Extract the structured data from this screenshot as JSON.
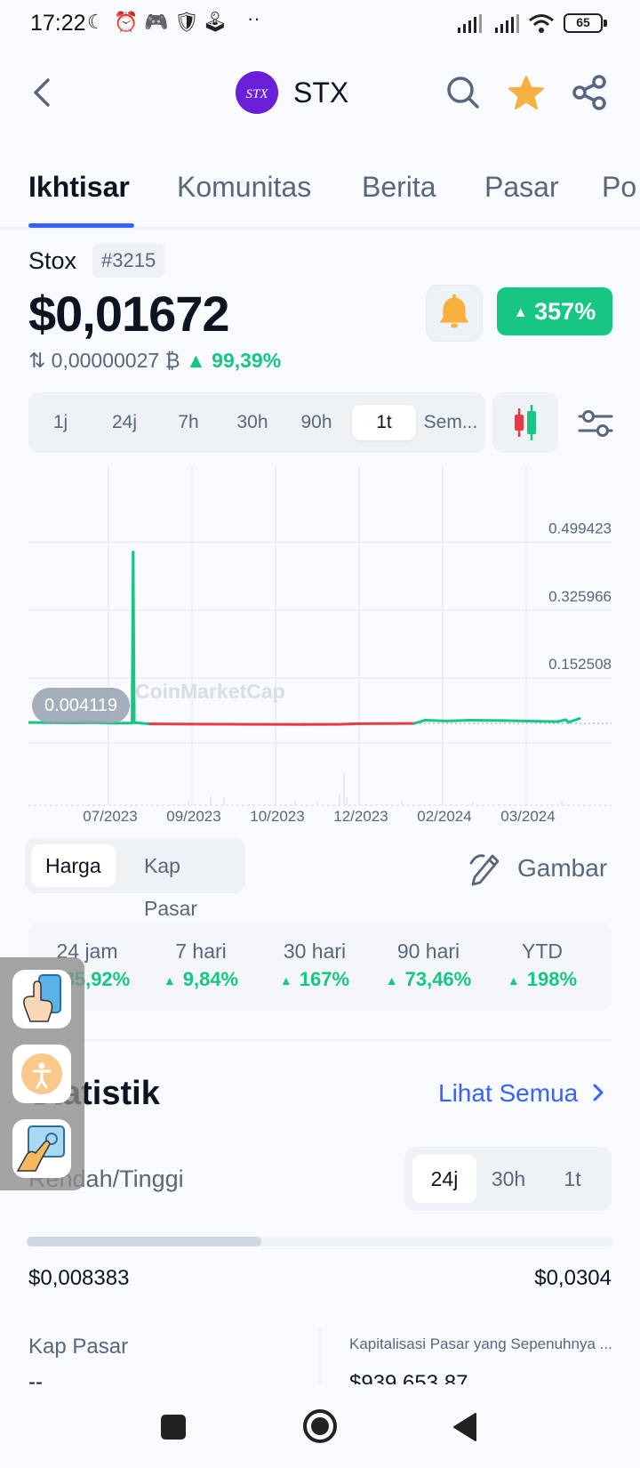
{
  "status_bar": {
    "time": "17:22",
    "battery": "65"
  },
  "header": {
    "symbol": "STX",
    "logo_text": "STX",
    "accent": "#6a1fd9"
  },
  "tabs": [
    {
      "label": "Ikhtisar",
      "active": true
    },
    {
      "label": "Komunitas"
    },
    {
      "label": "Berita"
    },
    {
      "label": "Pasar"
    },
    {
      "label": "Po"
    }
  ],
  "coin": {
    "name": "Stox",
    "rank": "#3215",
    "price": "$0,01672",
    "btc_price": "0,00000027 ₿",
    "btc_change": "99,39%",
    "change_badge": "357%"
  },
  "range": {
    "options": [
      "1j",
      "24j",
      "7h",
      "30h",
      "90h",
      "1t",
      "Sem..."
    ],
    "selected": "1t"
  },
  "chart_data": {
    "type": "line",
    "y_ticks": [
      "0.499423",
      "0.325966",
      "0.152508"
    ],
    "x_ticks": [
      "07/2023",
      "09/2023",
      "10/2023",
      "12/2023",
      "02/2024",
      "03/2024"
    ],
    "current_tag": "0.004119",
    "watermark": "CoinMarketCap",
    "ylim": [
      0,
      0.54
    ],
    "series": [
      {
        "points": [
          [
            0,
            0.0065
          ],
          [
            0.04,
            0.006
          ],
          [
            0.08,
            0.0055
          ],
          [
            0.12,
            0.006
          ],
          [
            0.155,
            0.0045
          ],
          [
            0.188,
            0.0048
          ],
          [
            0.19,
            0.42
          ],
          [
            0.192,
            0.006
          ],
          [
            0.22,
            0.003
          ],
          [
            0.3,
            0.0025
          ],
          [
            0.4,
            0.002
          ],
          [
            0.5,
            0.0015
          ],
          [
            0.56,
            0.0018
          ],
          [
            0.6,
            0.0035
          ],
          [
            0.7,
            0.004
          ],
          [
            0.72,
            0.012
          ],
          [
            0.76,
            0.01
          ],
          [
            0.8,
            0.012
          ],
          [
            0.86,
            0.011
          ],
          [
            0.9,
            0.01
          ],
          [
            0.96,
            0.0085
          ],
          [
            0.975,
            0.013
          ],
          [
            0.98,
            0.007
          ],
          [
            1.0,
            0.016
          ]
        ]
      }
    ],
    "baseline": 0.004119
  },
  "chart_type": {
    "options": [
      "Harga",
      "Kap Pasar"
    ],
    "selected": "Harga",
    "draw_label": "Gambar"
  },
  "performance": [
    {
      "label": "24 jam",
      "value": "85,92%"
    },
    {
      "label": "7 hari",
      "value": "9,84%"
    },
    {
      "label": "30 hari",
      "value": "167%"
    },
    {
      "label": "90 hari",
      "value": "73,46%"
    },
    {
      "label": "YTD",
      "value": "198%"
    }
  ],
  "stats": {
    "title": "Statistik",
    "see_all": "Lihat Semua",
    "low_high_label": "Rendah/Tinggi",
    "periods": [
      "24j",
      "30h",
      "1t"
    ],
    "selected_period": "24j",
    "low": "$0,008383",
    "high": "$0,0304",
    "range_position": 0.4,
    "market_cap_label": "Kap Pasar",
    "market_cap_value": "--",
    "fdv_label": "Kapitalisasi Pasar yang Sepenuhnya ...",
    "fdv_value": "$939.653,87"
  },
  "colors": {
    "up": "#16c784",
    "down": "#ea3943",
    "link": "#3861fb"
  }
}
